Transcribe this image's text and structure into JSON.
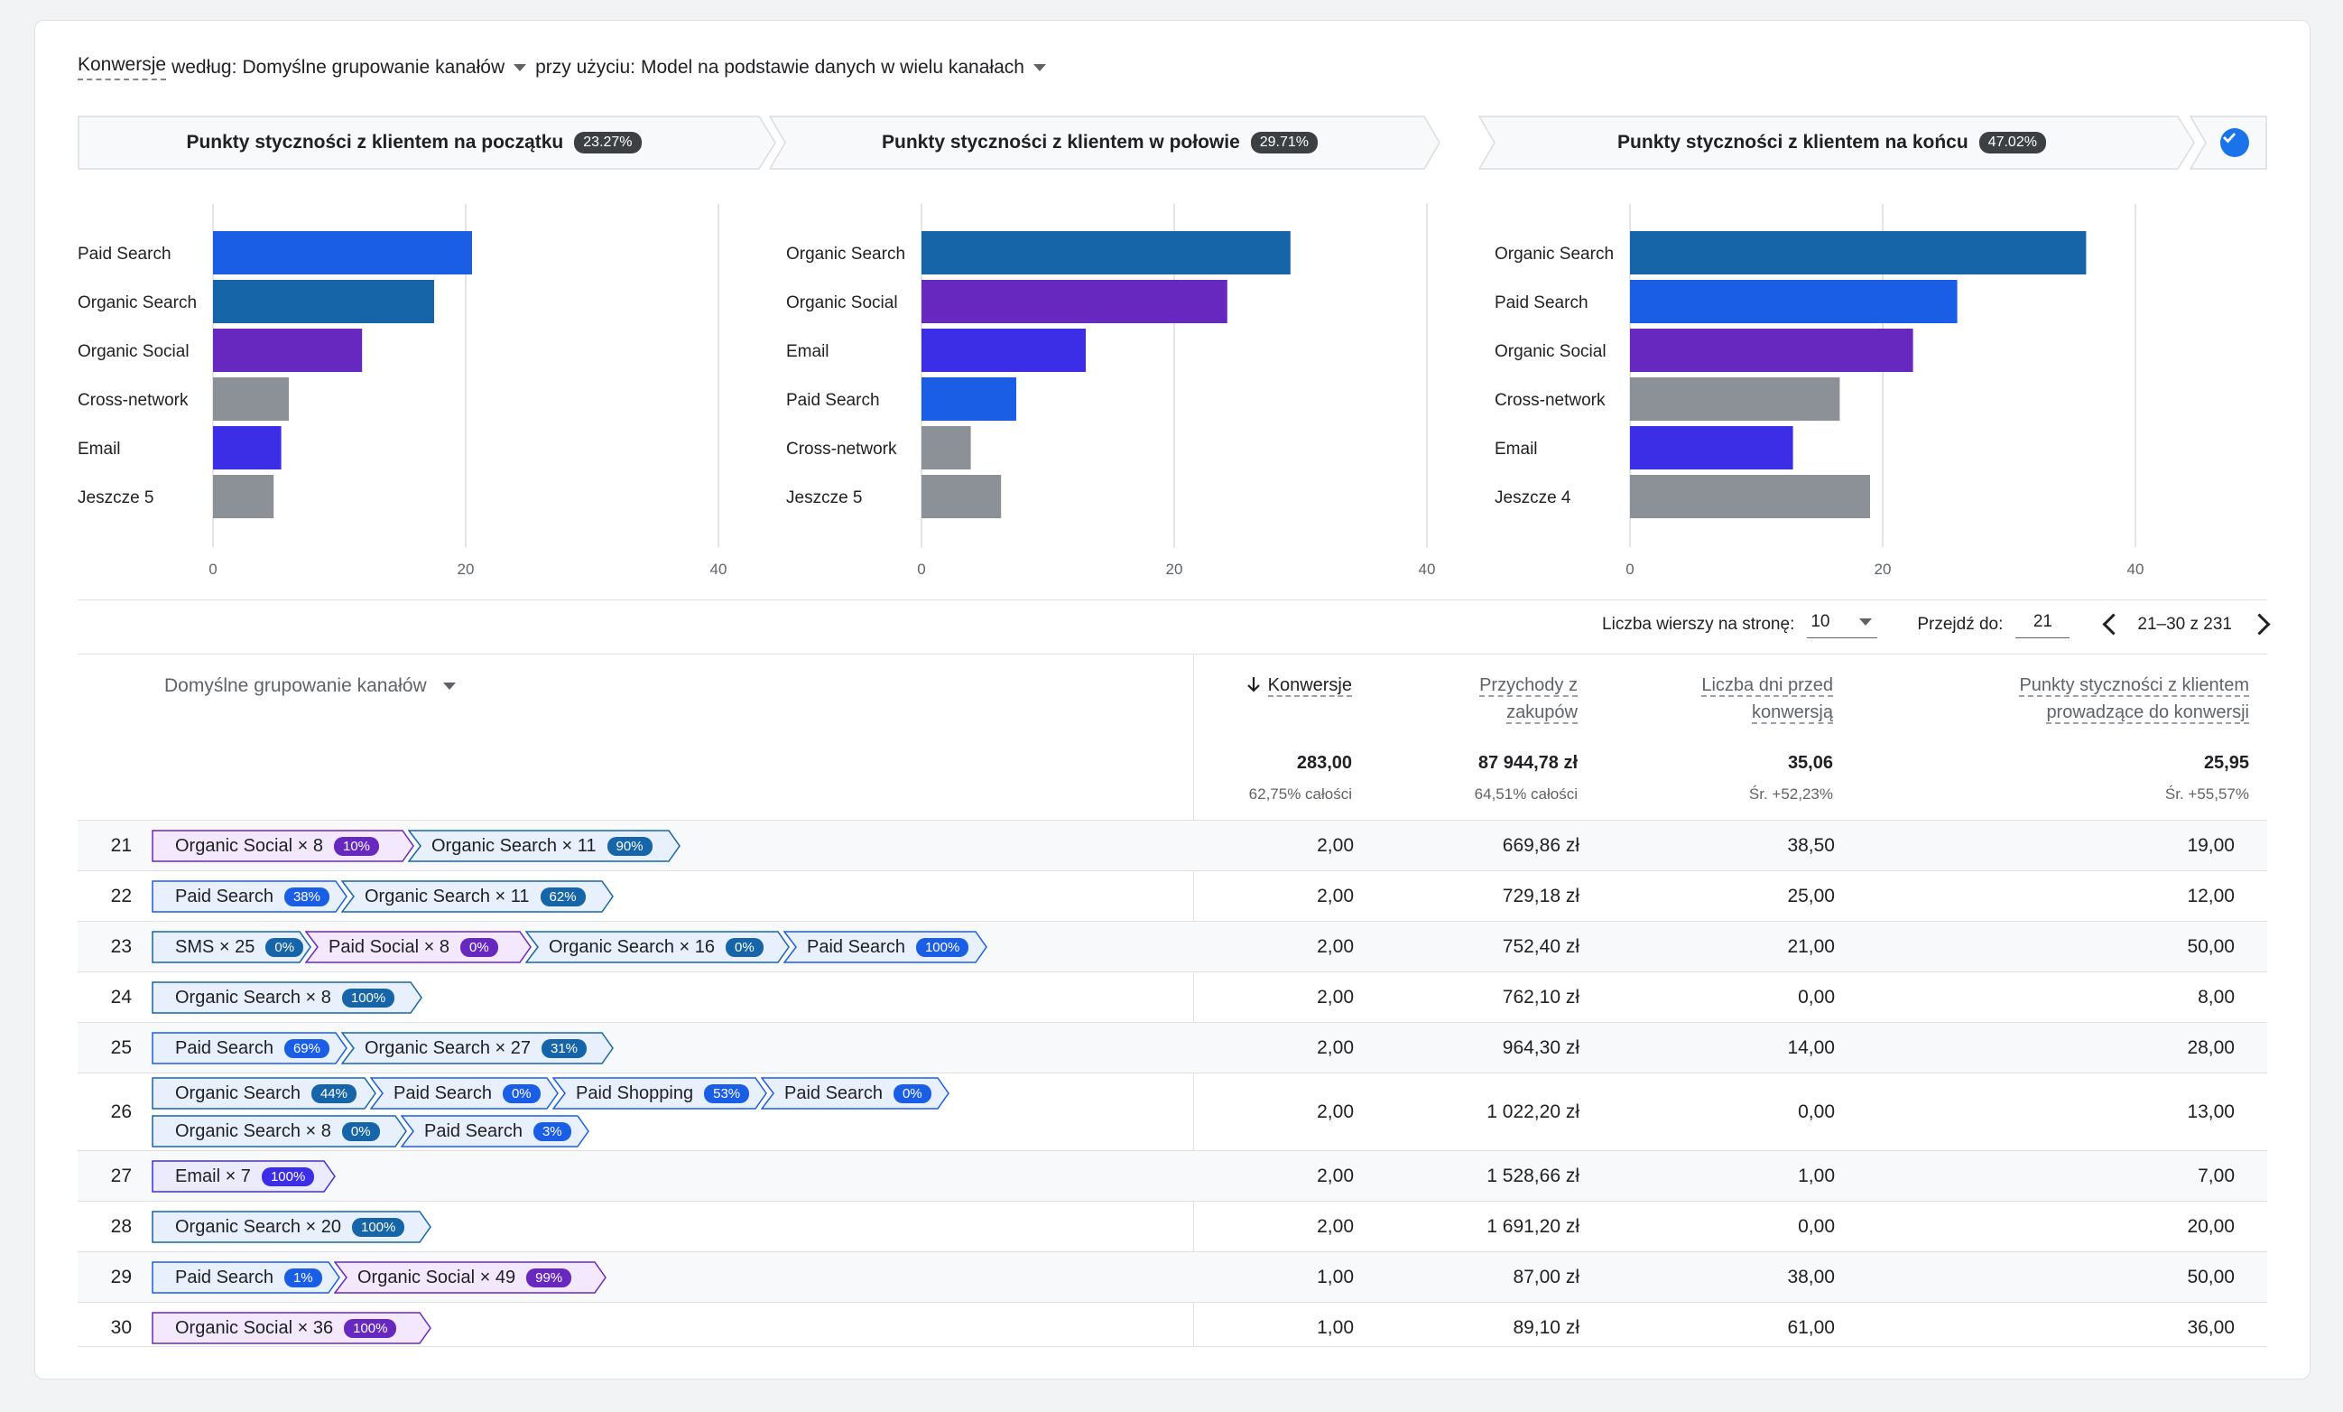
{
  "header": {
    "prefix": "Konwersje",
    "by": "według:",
    "dimension": "Domyślne grupowanie kanałów",
    "using": "przy użyciu:",
    "model": "Model na podstawie danych w wielu kanałach"
  },
  "stages": [
    {
      "label": "Punkty styczności z klientem na początku",
      "pct": "23.27%"
    },
    {
      "label": "Punkty styczności z klientem w połowie",
      "pct": "29.71%"
    },
    {
      "label": "Punkty styczności z klientem na końcu",
      "pct": "47.02%"
    }
  ],
  "chart_data": [
    {
      "type": "bar",
      "orientation": "horizontal",
      "title": "Punkty styczności z klientem na początku",
      "categories": [
        "Paid Search",
        "Organic Search",
        "Organic Social",
        "Cross-network",
        "Email",
        "Jeszcze 5"
      ],
      "values": [
        20.5,
        17.5,
        11.8,
        6,
        5.4,
        4.8
      ],
      "colors": [
        "#1a5ee6",
        "#1565a8",
        "#6728c0",
        "#8c9097",
        "#3c2ee6",
        "#8c9097"
      ],
      "xlim": [
        0,
        40
      ],
      "xticks": [
        "0",
        "20",
        "40"
      ],
      "grid": true
    },
    {
      "type": "bar",
      "orientation": "horizontal",
      "title": "Punkty styczności z klientem w połowie",
      "categories": [
        "Organic Search",
        "Organic Social",
        "Email",
        "Paid Search",
        "Cross-network",
        "Jeszcze 5"
      ],
      "values": [
        29.2,
        24.2,
        13,
        7.5,
        3.9,
        6.3
      ],
      "colors": [
        "#1565a8",
        "#6728c0",
        "#3c2ee6",
        "#1a5ee6",
        "#8c9097",
        "#8c9097"
      ],
      "xlim": [
        0,
        40
      ],
      "xticks": [
        "0",
        "20",
        "40"
      ],
      "grid": true
    },
    {
      "type": "bar",
      "orientation": "horizontal",
      "title": "Punkty styczności z klientem na końcu",
      "categories": [
        "Organic Search",
        "Paid Search",
        "Organic Social",
        "Cross-network",
        "Email",
        "Jeszcze 4"
      ],
      "values": [
        36.1,
        25.9,
        22.4,
        16.6,
        12.9,
        19.0
      ],
      "colors": [
        "#1565a8",
        "#1a5ee6",
        "#6728c0",
        "#8c9097",
        "#3c2ee6",
        "#8c9097"
      ],
      "xlim": [
        0,
        40
      ],
      "xticks": [
        "0",
        "20",
        "40"
      ],
      "grid": true
    }
  ],
  "pager": {
    "rows_label": "Liczba wierszy na stronę:",
    "rows_value": "10",
    "goto_label": "Przejdź do:",
    "goto_value": "21",
    "range": "21–30 z 231"
  },
  "table": {
    "dimension_header": "Domyślne grupowanie kanałów",
    "columns": [
      {
        "line1": "Konwersje",
        "line2": "",
        "total": "283,00",
        "sub": "62,75% całości"
      },
      {
        "line1": "Przychody z",
        "line2": "zakupów",
        "total": "87 944,78 zł",
        "sub": "64,51% całości"
      },
      {
        "line1": "Liczba dni przed",
        "line2": "konwersją",
        "total": "35,06",
        "sub": "Śr. +52,23%"
      },
      {
        "line1": "Punkty styczności z klientem",
        "line2": "prowadzące do konwersji",
        "total": "25,95",
        "sub": "Śr. +55,57%"
      }
    ],
    "rows": [
      {
        "n": "21",
        "conv": "2,00",
        "rev": "669,86 zł",
        "days": "38,50",
        "tp": "19,00",
        "chips": [
          [
            {
              "t": "Organic Social × 8",
              "b": "10%",
              "c": "social"
            },
            {
              "t": "Organic Search × 11",
              "b": "90%",
              "c": "search"
            }
          ]
        ]
      },
      {
        "n": "22",
        "conv": "2,00",
        "rev": "729,18 zł",
        "days": "25,00",
        "tp": "12,00",
        "chips": [
          [
            {
              "t": "Paid Search",
              "b": "38%",
              "c": "paid"
            },
            {
              "t": "Organic Search × 11",
              "b": "62%",
              "c": "search"
            }
          ]
        ]
      },
      {
        "n": "23",
        "conv": "2,00",
        "rev": "752,40 zł",
        "days": "21,00",
        "tp": "50,00",
        "chips": [
          [
            {
              "t": "SMS × 25",
              "b": "0%",
              "c": "search"
            },
            {
              "t": "Paid Social × 8",
              "b": "0%",
              "c": "social"
            },
            {
              "t": "Organic Search × 16",
              "b": "0%",
              "c": "search"
            },
            {
              "t": "Paid Search",
              "b": "100%",
              "c": "paid"
            }
          ]
        ]
      },
      {
        "n": "24",
        "conv": "2,00",
        "rev": "762,10 zł",
        "days": "0,00",
        "tp": "8,00",
        "chips": [
          [
            {
              "t": "Organic Search × 8",
              "b": "100%",
              "c": "search"
            }
          ]
        ]
      },
      {
        "n": "25",
        "conv": "2,00",
        "rev": "964,30 zł",
        "days": "14,00",
        "tp": "28,00",
        "chips": [
          [
            {
              "t": "Paid Search",
              "b": "69%",
              "c": "paid"
            },
            {
              "t": "Organic Search × 27",
              "b": "31%",
              "c": "search"
            }
          ]
        ]
      },
      {
        "n": "26",
        "conv": "2,00",
        "rev": "1 022,20 zł",
        "days": "0,00",
        "tp": "13,00",
        "chips": [
          [
            {
              "t": "Organic Search",
              "b": "44%",
              "c": "search"
            },
            {
              "t": "Paid Search",
              "b": "0%",
              "c": "paid"
            },
            {
              "t": "Paid Shopping",
              "b": "53%",
              "c": "paid"
            },
            {
              "t": "Paid Search",
              "b": "0%",
              "c": "paid"
            }
          ],
          [
            {
              "t": "Organic Search × 8",
              "b": "0%",
              "c": "search"
            },
            {
              "t": "Paid Search",
              "b": "3%",
              "c": "paid"
            }
          ]
        ]
      },
      {
        "n": "27",
        "conv": "2,00",
        "rev": "1 528,66 zł",
        "days": "1,00",
        "tp": "7,00",
        "chips": [
          [
            {
              "t": "Email × 7",
              "b": "100%",
              "c": "email"
            }
          ]
        ]
      },
      {
        "n": "28",
        "conv": "2,00",
        "rev": "1 691,20 zł",
        "days": "0,00",
        "tp": "20,00",
        "chips": [
          [
            {
              "t": "Organic Search × 20",
              "b": "100%",
              "c": "search"
            }
          ]
        ]
      },
      {
        "n": "29",
        "conv": "1,00",
        "rev": "87,00 zł",
        "days": "38,00",
        "tp": "50,00",
        "chips": [
          [
            {
              "t": "Paid Search",
              "b": "1%",
              "c": "paid"
            },
            {
              "t": "Organic Social × 49",
              "b": "99%",
              "c": "social"
            }
          ]
        ]
      },
      {
        "n": "30",
        "conv": "1,00",
        "rev": "89,10 zł",
        "days": "61,00",
        "tp": "36,00",
        "chips": [
          [
            {
              "t": "Organic Social × 36",
              "b": "100%",
              "c": "social"
            }
          ]
        ]
      }
    ]
  }
}
